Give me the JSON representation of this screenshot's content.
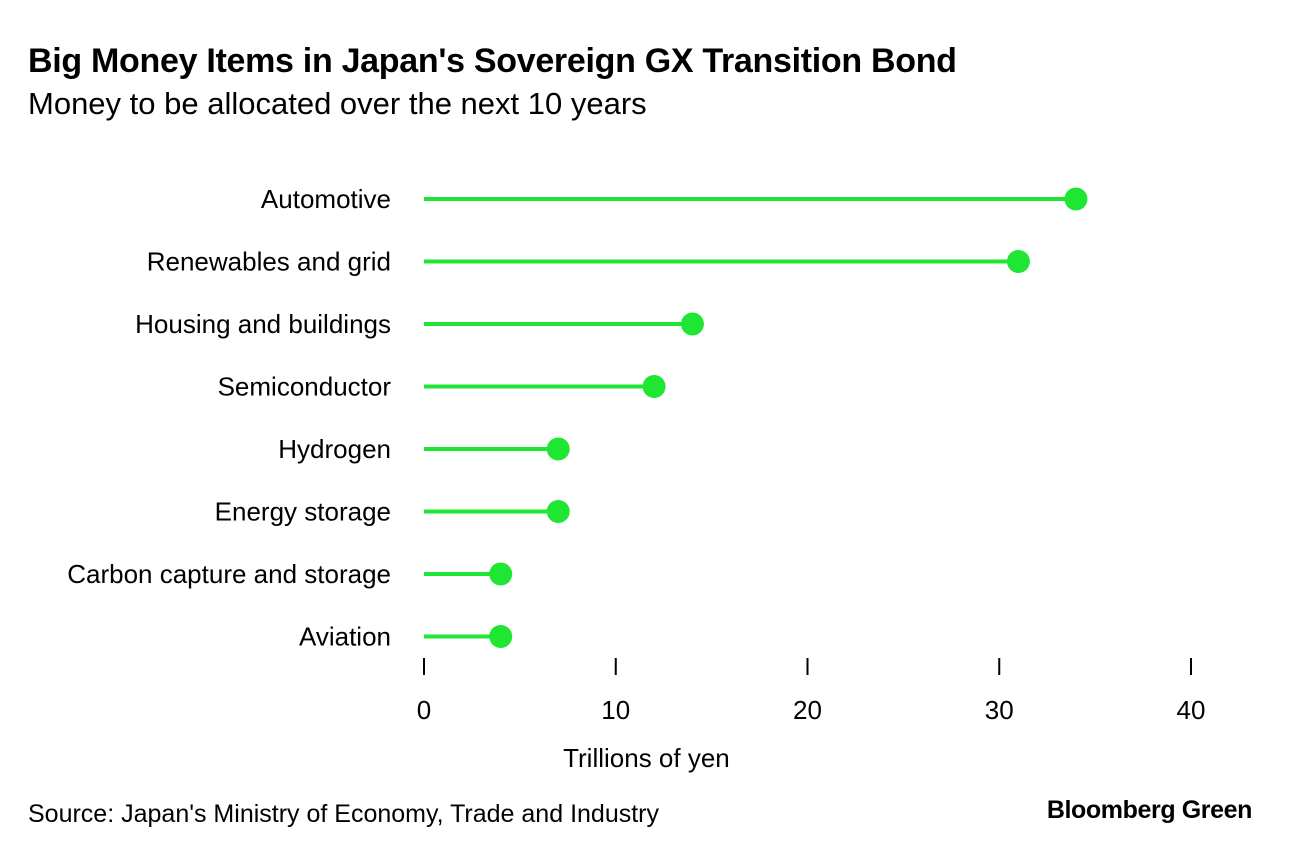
{
  "header": {
    "title": "Big Money Items in Japan's Sovereign GX Transition Bond",
    "subtitle": "Money to be allocated over the next 10 years"
  },
  "footer": {
    "source": "Source: Japan's Ministry of Economy, Trade and Industry",
    "brand": "Bloomberg Green"
  },
  "colors": {
    "accent": "#1fe632",
    "text": "#000000"
  },
  "chart_data": {
    "type": "lollipop",
    "title": "Big Money Items in Japan's Sovereign GX Transition Bond",
    "subtitle": "Money to be allocated over the next 10 years",
    "xlabel": "Trillions of yen",
    "ylabel": "",
    "categories": [
      "Automotive",
      "Renewables and grid",
      "Housing and buildings",
      "Semiconductor",
      "Hydrogen",
      "Energy storage",
      "Carbon capture and storage",
      "Aviation"
    ],
    "values": [
      34,
      31,
      14,
      12,
      7,
      7,
      4,
      4
    ],
    "xlim": [
      0,
      40
    ],
    "xticks": [
      0,
      10,
      20,
      30,
      40
    ],
    "grid": false,
    "legend": "none"
  }
}
